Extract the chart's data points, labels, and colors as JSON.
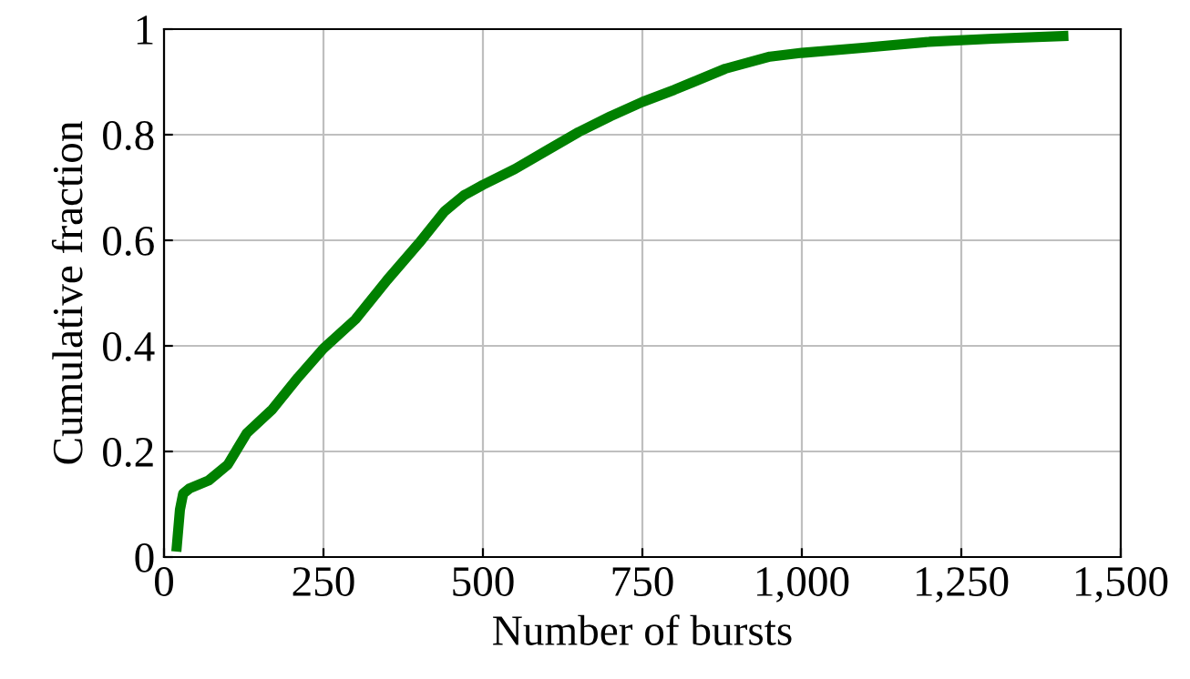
{
  "chart_data": {
    "type": "line",
    "xlabel": "Number of bursts",
    "ylabel": "Cumulative fraction",
    "x": [
      20,
      25,
      30,
      40,
      70,
      100,
      130,
      170,
      210,
      250,
      300,
      350,
      400,
      440,
      470,
      500,
      550,
      600,
      650,
      700,
      750,
      800,
      830,
      880,
      950,
      1000,
      1100,
      1200,
      1300,
      1410
    ],
    "series": [
      {
        "color": "#008000",
        "values": [
          0.02,
          0.09,
          0.12,
          0.13,
          0.145,
          0.175,
          0.235,
          0.28,
          0.34,
          0.395,
          0.45,
          0.525,
          0.595,
          0.655,
          0.685,
          0.705,
          0.735,
          0.77,
          0.805,
          0.835,
          0.862,
          0.885,
          0.9,
          0.925,
          0.948,
          0.955,
          0.965,
          0.976,
          0.982,
          0.987
        ]
      }
    ],
    "xlim": [
      0,
      1500
    ],
    "ylim": [
      0,
      1
    ],
    "xticks": [
      0,
      250,
      500,
      750,
      {
        "value": 1000,
        "label": "1,000"
      },
      {
        "value": 1250,
        "label": "1,250"
      },
      {
        "value": 1500,
        "label": "1,500"
      }
    ],
    "yticks": [
      0,
      0.2,
      0.4,
      0.6,
      0.8,
      1
    ],
    "grid": true,
    "marker": "none",
    "line_style": "solid"
  }
}
